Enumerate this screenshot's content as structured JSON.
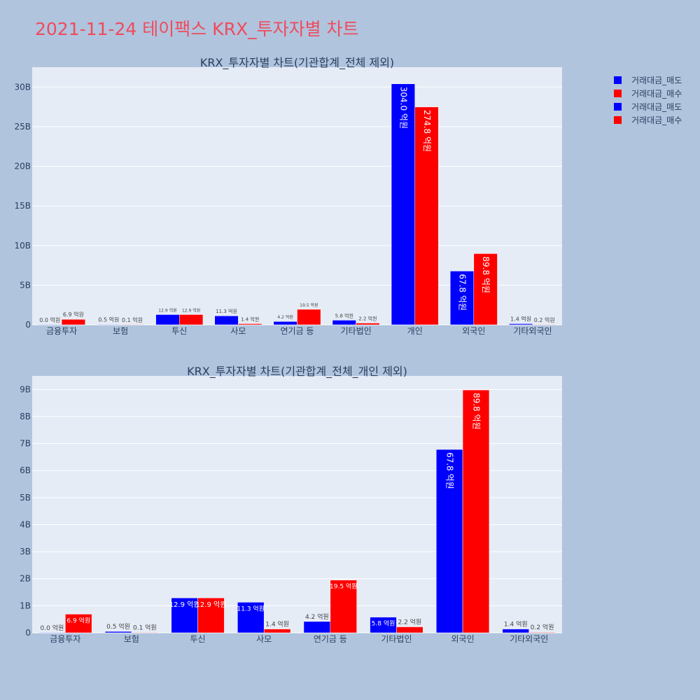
{
  "title": "2021-11-24 테이팩스 KRX_투자자별 차트",
  "legend": {
    "items": [
      {
        "label": "거래대금_매도",
        "color": "#0000ff"
      },
      {
        "label": "거래대금_매수",
        "color": "#ff0000"
      },
      {
        "label": "거래대금_매도",
        "color": "#0000ff"
      },
      {
        "label": "거래대금_매수",
        "color": "#ff0000"
      }
    ]
  },
  "chart_data": [
    {
      "type": "bar",
      "title": "KRX_투자자별 차트(기관합계_전체 제외)",
      "categories": [
        "금융투자",
        "보험",
        "투신",
        "사모",
        "연기금 등",
        "기타법인",
        "개인",
        "외국인",
        "기타외국인"
      ],
      "ylim": [
        0,
        32500000000
      ],
      "yticks": [
        0,
        5000000000,
        10000000000,
        15000000000,
        20000000000,
        25000000000,
        30000000000
      ],
      "yticklabels": [
        "0",
        "5B",
        "10B",
        "15B",
        "20B",
        "25B",
        "30B"
      ],
      "series": [
        {
          "name": "거래대금_매도",
          "color": "#0000ff",
          "values": [
            0,
            50000000,
            1290000000,
            1130000000,
            420000000,
            580000000,
            30400000000,
            6780000000,
            140000000
          ],
          "labels": [
            "0.0 억원",
            "0.5 억원",
            "12.9 억원",
            "11.3 억원",
            "4.2 억원",
            "5.8 억원",
            "304.0 억원",
            "67.8 억원",
            "1.4 억원"
          ]
        },
        {
          "name": "거래대금_매수",
          "color": "#ff0000",
          "values": [
            690000000,
            10000000,
            1290000000,
            140000000,
            1950000000,
            220000000,
            27480000000,
            8980000000,
            20000000
          ],
          "labels": [
            "6.9 억원",
            "0.1 억원",
            "12.9 억원",
            "1.4 억원",
            "19.5 억원",
            "2.2 억원",
            "274.8 억원",
            "89.8 억원",
            "0.2 억원"
          ]
        }
      ]
    },
    {
      "type": "bar",
      "title": "KRX_투자자별 차트(기관합계_전체_개인 제외)",
      "categories": [
        "금융투자",
        "보험",
        "투신",
        "사모",
        "연기금 등",
        "기타법인",
        "외국인",
        "기타외국인"
      ],
      "ylim": [
        0,
        9500000000
      ],
      "yticks": [
        0,
        1000000000,
        2000000000,
        3000000000,
        4000000000,
        5000000000,
        6000000000,
        7000000000,
        8000000000,
        9000000000
      ],
      "yticklabels": [
        "0",
        "1B",
        "2B",
        "3B",
        "4B",
        "5B",
        "6B",
        "7B",
        "8B",
        "9B"
      ],
      "series": [
        {
          "name": "거래대금_매도",
          "color": "#0000ff",
          "values": [
            0,
            50000000,
            1290000000,
            1130000000,
            420000000,
            580000000,
            6780000000,
            140000000
          ],
          "labels": [
            "0.0 억원",
            "0.5 억원",
            "12.9 억원",
            "11.3 억원",
            "4.2 억원",
            "5.8 억원",
            "67.8 억원",
            "1.4 억원"
          ]
        },
        {
          "name": "거래대금_매수",
          "color": "#ff0000",
          "values": [
            690000000,
            10000000,
            1290000000,
            140000000,
            1950000000,
            220000000,
            8980000000,
            20000000
          ],
          "labels": [
            "6.9 억원",
            "0.1 억원",
            "12.9 억원",
            "1.4 억원",
            "19.5 억원",
            "2.2 억원",
            "89.8 억원",
            "0.2 억원"
          ]
        }
      ]
    }
  ]
}
